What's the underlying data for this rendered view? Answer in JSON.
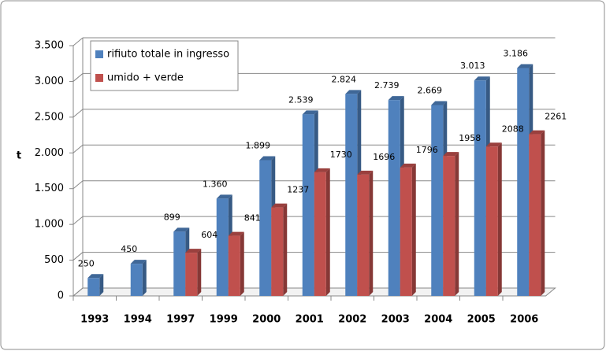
{
  "chart_data": {
    "type": "bar3d",
    "y_label": "t",
    "categories": [
      "1993",
      "1994",
      "1997",
      "1999",
      "2000",
      "2001",
      "2002",
      "2003",
      "2004",
      "2005",
      "2006"
    ],
    "series": [
      {
        "name": "rifiuto totale in ingresso",
        "color": "#4f81bd",
        "values": [
          250,
          450,
          899,
          1360,
          1899,
          2539,
          2824,
          2739,
          2669,
          3013,
          3186
        ],
        "value_labels": [
          "250",
          "450",
          "899",
          "1.360",
          "1.899",
          "2.539",
          "2.824",
          "2.739",
          "2.669",
          "3.013",
          "3.186"
        ]
      },
      {
        "name": "umido + verde",
        "color": "#c0504d",
        "values": [
          null,
          null,
          604,
          841,
          1237,
          1730,
          1696,
          1796,
          1958,
          2088,
          2261
        ]
      }
    ],
    "ylim": [
      0,
      3500
    ],
    "yticks": [
      0,
      500,
      {
        "value": 1000,
        "label": "1.000"
      },
      {
        "value": 1500,
        "label": "1.500"
      },
      {
        "value": 2000,
        "label": "2.000"
      },
      {
        "value": 2500,
        "label": "2.500"
      },
      {
        "value": 3000,
        "label": "3.000"
      },
      {
        "value": 3500,
        "label": "3.500"
      }
    ],
    "grid": true,
    "legend": "top-left"
  }
}
